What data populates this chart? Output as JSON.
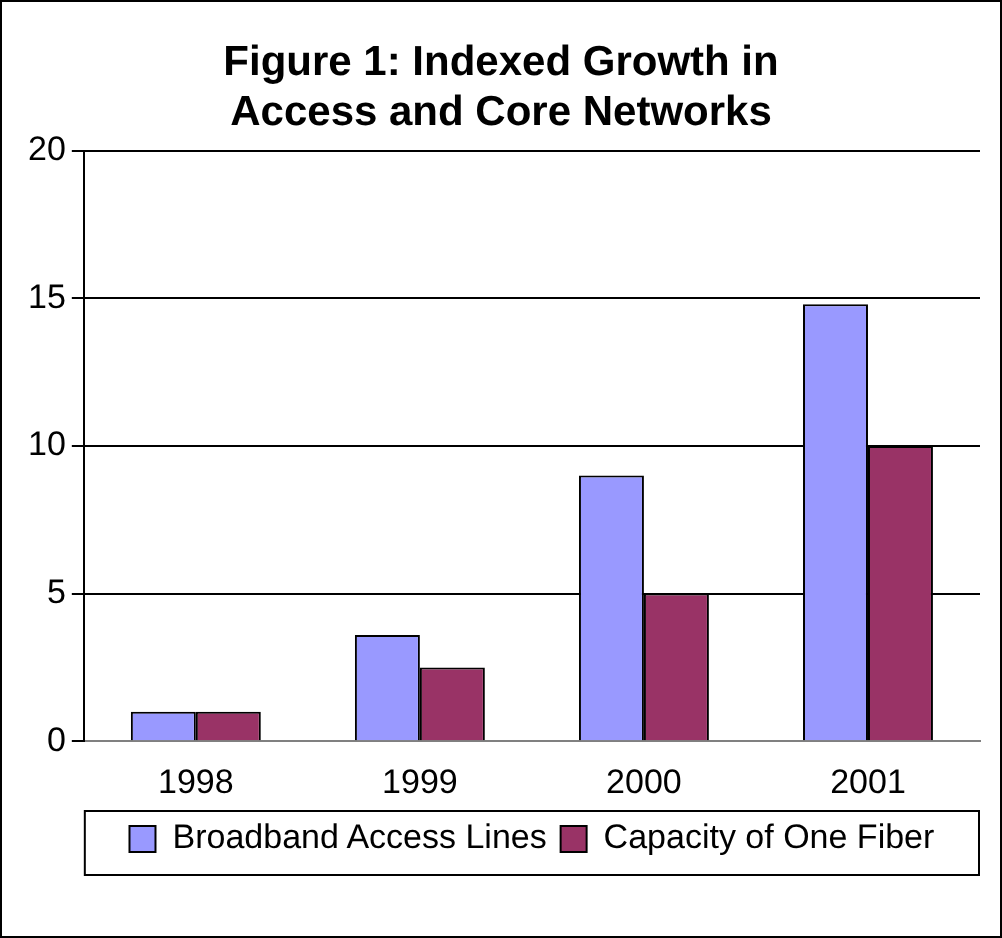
{
  "chart_data": {
    "type": "bar",
    "title": "Figure 1: Indexed Growth in Access and Core Networks",
    "categories": [
      "1998",
      "1999",
      "2000",
      "2001"
    ],
    "series": [
      {
        "name": "Broadband Access Lines",
        "color": "#9999ff",
        "values": [
          1,
          3.6,
          9,
          14.8
        ]
      },
      {
        "name": "Capacity of One Fiber",
        "color": "#993366",
        "values": [
          1,
          2.5,
          5,
          10
        ]
      }
    ],
    "ylim": [
      0,
      20
    ],
    "yticks": [
      0,
      5,
      10,
      15,
      20
    ],
    "grid": "y",
    "legend": "bottom"
  }
}
